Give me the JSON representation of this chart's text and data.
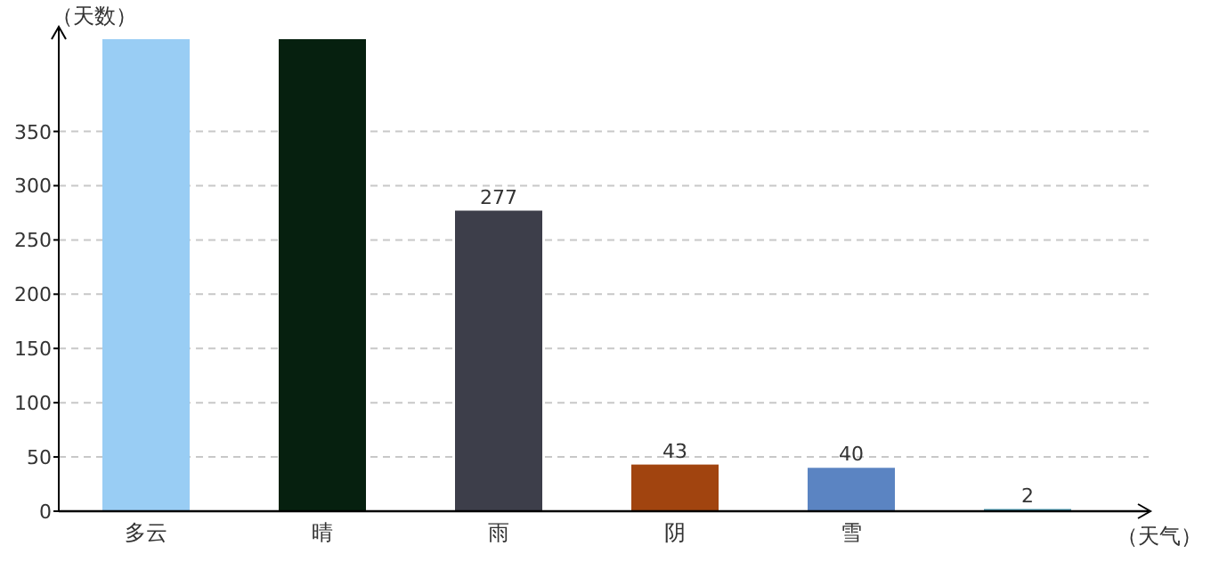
{
  "chart_data": {
    "type": "bar",
    "categories": [
      "多云",
      "晴",
      "雨",
      "阴",
      "雪",
      null
    ],
    "values": [
      435,
      435,
      277,
      43,
      40,
      2
    ],
    "colors": [
      "#99cdf4",
      "#06200f",
      "#3d3e4a",
      "#a1440f",
      "#5b84c2",
      "#3f8fa8"
    ],
    "value_labels": [
      null,
      null,
      "277",
      "43",
      "40",
      "2"
    ],
    "xlabel": "（天气）",
    "ylabel": "（天数）",
    "ylim": [
      0,
      435
    ],
    "yticks": [
      0,
      50,
      100,
      150,
      200,
      250,
      300,
      350
    ],
    "grid": "y"
  }
}
